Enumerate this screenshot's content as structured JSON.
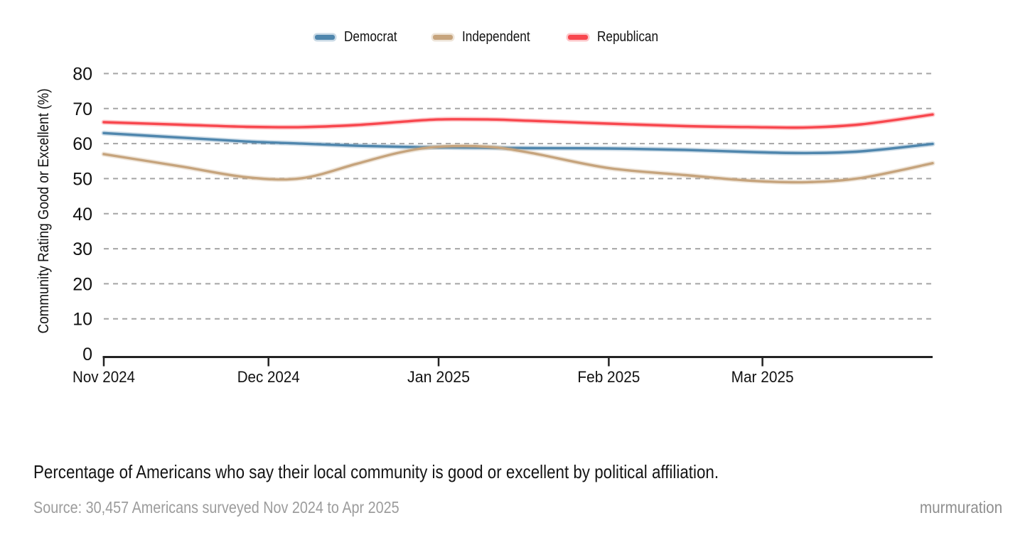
{
  "caption": {
    "text": "Percentage of Americans who say their local community is good or excellent by political affiliation."
  },
  "footer": {
    "source": "Source: 30,457 Americans surveyed Nov 2024 to Apr 2025",
    "brand": "murmuration"
  },
  "chart_data": {
    "type": "line",
    "title": "",
    "xlabel": "",
    "ylabel": "Community Rating Good or Excellent (%)",
    "ylim": [
      0,
      80
    ],
    "ytick_step": 10,
    "grid": "horizontal-dashed",
    "grid_color": "#a5a5a5",
    "axis_color": "#222222",
    "legend_position": "top-center",
    "x_domain_days": 151,
    "x_ticks": [
      {
        "label": "Nov 2024",
        "day": 0
      },
      {
        "label": "Dec 2024",
        "day": 30
      },
      {
        "label": "Jan 2025",
        "day": 61
      },
      {
        "label": "Feb 2025",
        "day": 92
      },
      {
        "label": "Mar 2025",
        "day": 120
      }
    ],
    "x_days": [
      0,
      14,
      26,
      36,
      46,
      54,
      61,
      70,
      78,
      92,
      106,
      118,
      128,
      138,
      151
    ],
    "series": [
      {
        "name": "Democrat",
        "color": "#4f86ad",
        "values": [
          63.0,
          61.7,
          60.6,
          60.0,
          59.4,
          59.1,
          58.9,
          58.8,
          58.7,
          58.6,
          58.2,
          57.6,
          57.3,
          57.8,
          59.9
        ]
      },
      {
        "name": "Independent",
        "color": "#c6a47d",
        "values": [
          57.0,
          53.5,
          50.4,
          50.1,
          54.2,
          57.5,
          59.1,
          59.1,
          57.3,
          53.0,
          51.0,
          49.4,
          49.0,
          50.2,
          54.4
        ]
      },
      {
        "name": "Republican",
        "color": "#f8474e",
        "values": [
          66.1,
          65.4,
          64.8,
          64.7,
          65.3,
          66.2,
          66.9,
          66.9,
          66.5,
          65.7,
          65.0,
          64.7,
          64.6,
          65.5,
          68.3
        ]
      }
    ]
  }
}
